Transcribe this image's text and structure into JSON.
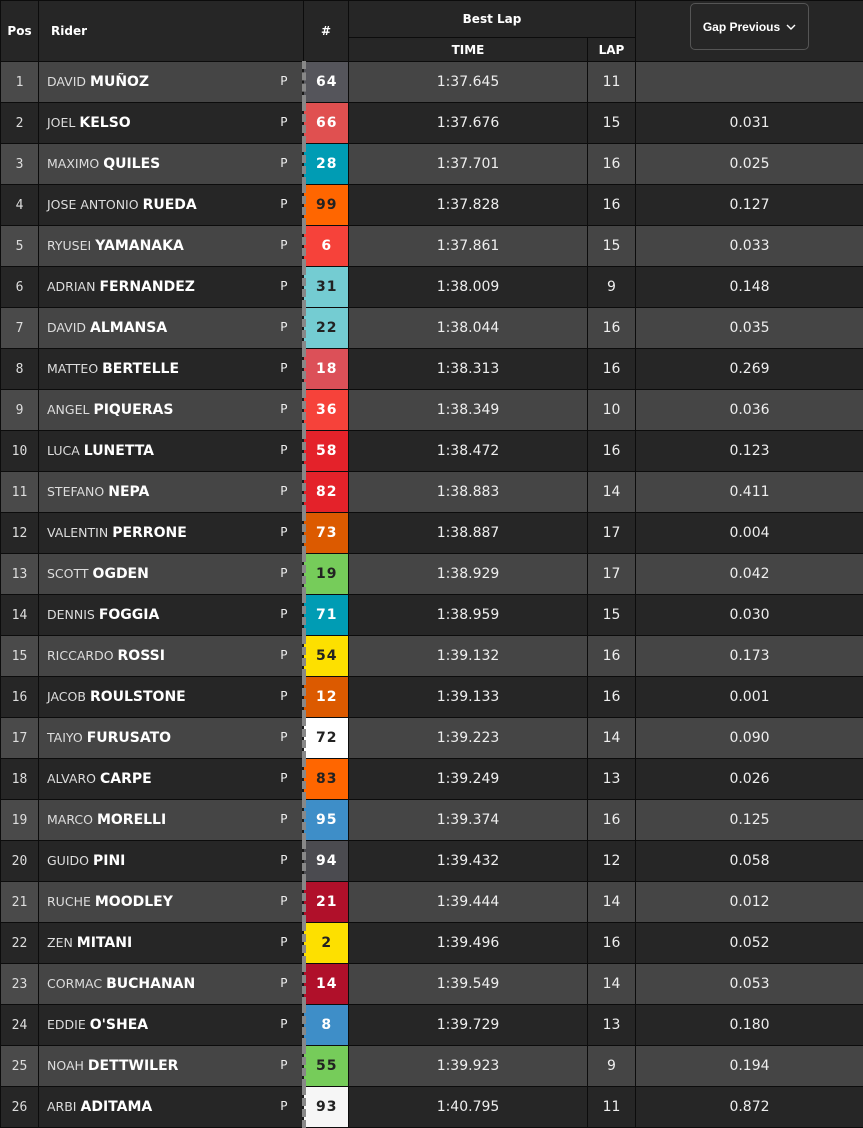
{
  "header": {
    "pos": "Pos",
    "rider": "Rider",
    "number": "#",
    "best_lap": "Best Lap",
    "time": "TIME",
    "lap": "LAP",
    "gap_dropdown": "Gap Previous",
    "gap_icon": "chevron-down-icon"
  },
  "rows": [
    {
      "pos": "1",
      "first": "DAVID",
      "last": "MUÑOZ",
      "status": "P",
      "num": "64",
      "color": "#55555b",
      "text": "#fff",
      "time": "1:37.645",
      "lap": "11",
      "gap": ""
    },
    {
      "pos": "2",
      "first": "JOEL",
      "last": "KELSO",
      "status": "P",
      "num": "66",
      "color": "#e05050",
      "text": "#fff",
      "time": "1:37.676",
      "lap": "15",
      "gap": "0.031"
    },
    {
      "pos": "3",
      "first": "MAXIMO",
      "last": "QUILES",
      "status": "P",
      "num": "28",
      "color": "#009cb4",
      "text": "#fff",
      "time": "1:37.701",
      "lap": "16",
      "gap": "0.025"
    },
    {
      "pos": "4",
      "first": "JOSE ANTONIO",
      "last": "RUEDA",
      "status": "P",
      "num": "99",
      "color": "#ff6600",
      "text": "#222",
      "time": "1:37.828",
      "lap": "16",
      "gap": "0.127"
    },
    {
      "pos": "5",
      "first": "RYUSEI",
      "last": "YAMANAKA",
      "status": "P",
      "num": "6",
      "color": "#f6423a",
      "text": "#fff",
      "time": "1:37.861",
      "lap": "15",
      "gap": "0.033"
    },
    {
      "pos": "6",
      "first": "ADRIAN",
      "last": "FERNANDEZ",
      "status": "P",
      "num": "31",
      "color": "#74ccd2",
      "text": "#222",
      "time": "1:38.009",
      "lap": "9",
      "gap": "0.148"
    },
    {
      "pos": "7",
      "first": "DAVID",
      "last": "ALMANSA",
      "status": "P",
      "num": "22",
      "color": "#74ccd2",
      "text": "#222",
      "time": "1:38.044",
      "lap": "16",
      "gap": "0.035"
    },
    {
      "pos": "8",
      "first": "MATTEO",
      "last": "BERTELLE",
      "status": "P",
      "num": "18",
      "color": "#dc5058",
      "text": "#fff",
      "time": "1:38.313",
      "lap": "16",
      "gap": "0.269"
    },
    {
      "pos": "9",
      "first": "ANGEL",
      "last": "PIQUERAS",
      "status": "P",
      "num": "36",
      "color": "#f6423a",
      "text": "#fff",
      "time": "1:38.349",
      "lap": "10",
      "gap": "0.036"
    },
    {
      "pos": "10",
      "first": "LUCA",
      "last": "LUNETTA",
      "status": "P",
      "num": "58",
      "color": "#e4222a",
      "text": "#fff",
      "time": "1:38.472",
      "lap": "16",
      "gap": "0.123"
    },
    {
      "pos": "11",
      "first": "STEFANO",
      "last": "NEPA",
      "status": "P",
      "num": "82",
      "color": "#e4222a",
      "text": "#fff",
      "time": "1:38.883",
      "lap": "14",
      "gap": "0.411"
    },
    {
      "pos": "12",
      "first": "VALENTIN",
      "last": "PERRONE",
      "status": "P",
      "num": "73",
      "color": "#dc5a00",
      "text": "#fff",
      "time": "1:38.887",
      "lap": "17",
      "gap": "0.004"
    },
    {
      "pos": "13",
      "first": "SCOTT",
      "last": "OGDEN",
      "status": "P",
      "num": "19",
      "color": "#76cc5a",
      "text": "#222",
      "time": "1:38.929",
      "lap": "17",
      "gap": "0.042"
    },
    {
      "pos": "14",
      "first": "DENNIS",
      "last": "FOGGIA",
      "status": "P",
      "num": "71",
      "color": "#009cb4",
      "text": "#fff",
      "time": "1:38.959",
      "lap": "15",
      "gap": "0.030"
    },
    {
      "pos": "15",
      "first": "RICCARDO",
      "last": "ROSSI",
      "status": "P",
      "num": "54",
      "color": "#fde000",
      "text": "#222",
      "time": "1:39.132",
      "lap": "16",
      "gap": "0.173"
    },
    {
      "pos": "16",
      "first": "JACOB",
      "last": "ROULSTONE",
      "status": "P",
      "num": "12",
      "color": "#dc5a00",
      "text": "#fff",
      "time": "1:39.133",
      "lap": "16",
      "gap": "0.001"
    },
    {
      "pos": "17",
      "first": "TAIYO",
      "last": "FURUSATO",
      "status": "P",
      "num": "72",
      "color": "#ffffff",
      "text": "#222",
      "time": "1:39.223",
      "lap": "14",
      "gap": "0.090"
    },
    {
      "pos": "18",
      "first": "ALVARO",
      "last": "CARPE",
      "status": "P",
      "num": "83",
      "color": "#ff6600",
      "text": "#222",
      "time": "1:39.249",
      "lap": "13",
      "gap": "0.026"
    },
    {
      "pos": "19",
      "first": "MARCO",
      "last": "MORELLI",
      "status": "P",
      "num": "95",
      "color": "#3e8ec8",
      "text": "#fff",
      "time": "1:39.374",
      "lap": "16",
      "gap": "0.125"
    },
    {
      "pos": "20",
      "first": "GUIDO",
      "last": "PINI",
      "status": "P",
      "num": "94",
      "color": "#4b4b50",
      "text": "#fff",
      "time": "1:39.432",
      "lap": "12",
      "gap": "0.058"
    },
    {
      "pos": "21",
      "first": "RUCHE",
      "last": "MOODLEY",
      "status": "P",
      "num": "21",
      "color": "#b0102a",
      "text": "#fff",
      "time": "1:39.444",
      "lap": "14",
      "gap": "0.012"
    },
    {
      "pos": "22",
      "first": "ZEN",
      "last": "MITANI",
      "status": "P",
      "num": "2",
      "color": "#fde000",
      "text": "#222",
      "time": "1:39.496",
      "lap": "16",
      "gap": "0.052"
    },
    {
      "pos": "23",
      "first": "CORMAC",
      "last": "BUCHANAN",
      "status": "P",
      "num": "14",
      "color": "#b0102a",
      "text": "#fff",
      "time": "1:39.549",
      "lap": "14",
      "gap": "0.053"
    },
    {
      "pos": "24",
      "first": "EDDIE",
      "last": "O'SHEA",
      "status": "P",
      "num": "8",
      "color": "#3e8ec8",
      "text": "#fff",
      "time": "1:39.729",
      "lap": "13",
      "gap": "0.180"
    },
    {
      "pos": "25",
      "first": "NOAH",
      "last": "DETTWILER",
      "status": "P",
      "num": "55",
      "color": "#76cc5a",
      "text": "#222",
      "time": "1:39.923",
      "lap": "9",
      "gap": "0.194"
    },
    {
      "pos": "26",
      "first": "ARBI",
      "last": "ADITAMA",
      "status": "P",
      "num": "93",
      "color": "#f6f6f6",
      "text": "#222",
      "time": "1:40.795",
      "lap": "11",
      "gap": "0.872"
    }
  ]
}
